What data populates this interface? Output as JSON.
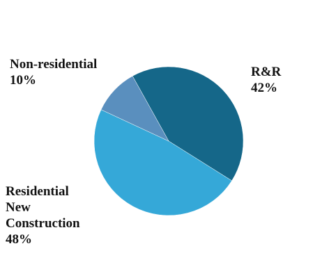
{
  "chart_data": {
    "type": "pie",
    "categories": [
      "R&R",
      "Residential New Construction",
      "Non-residential"
    ],
    "values": [
      42,
      48,
      10
    ],
    "value_labels": [
      "42%",
      "48%",
      "10%"
    ],
    "colors": [
      "#156789",
      "#35a8d8",
      "#5a8fbe"
    ]
  }
}
